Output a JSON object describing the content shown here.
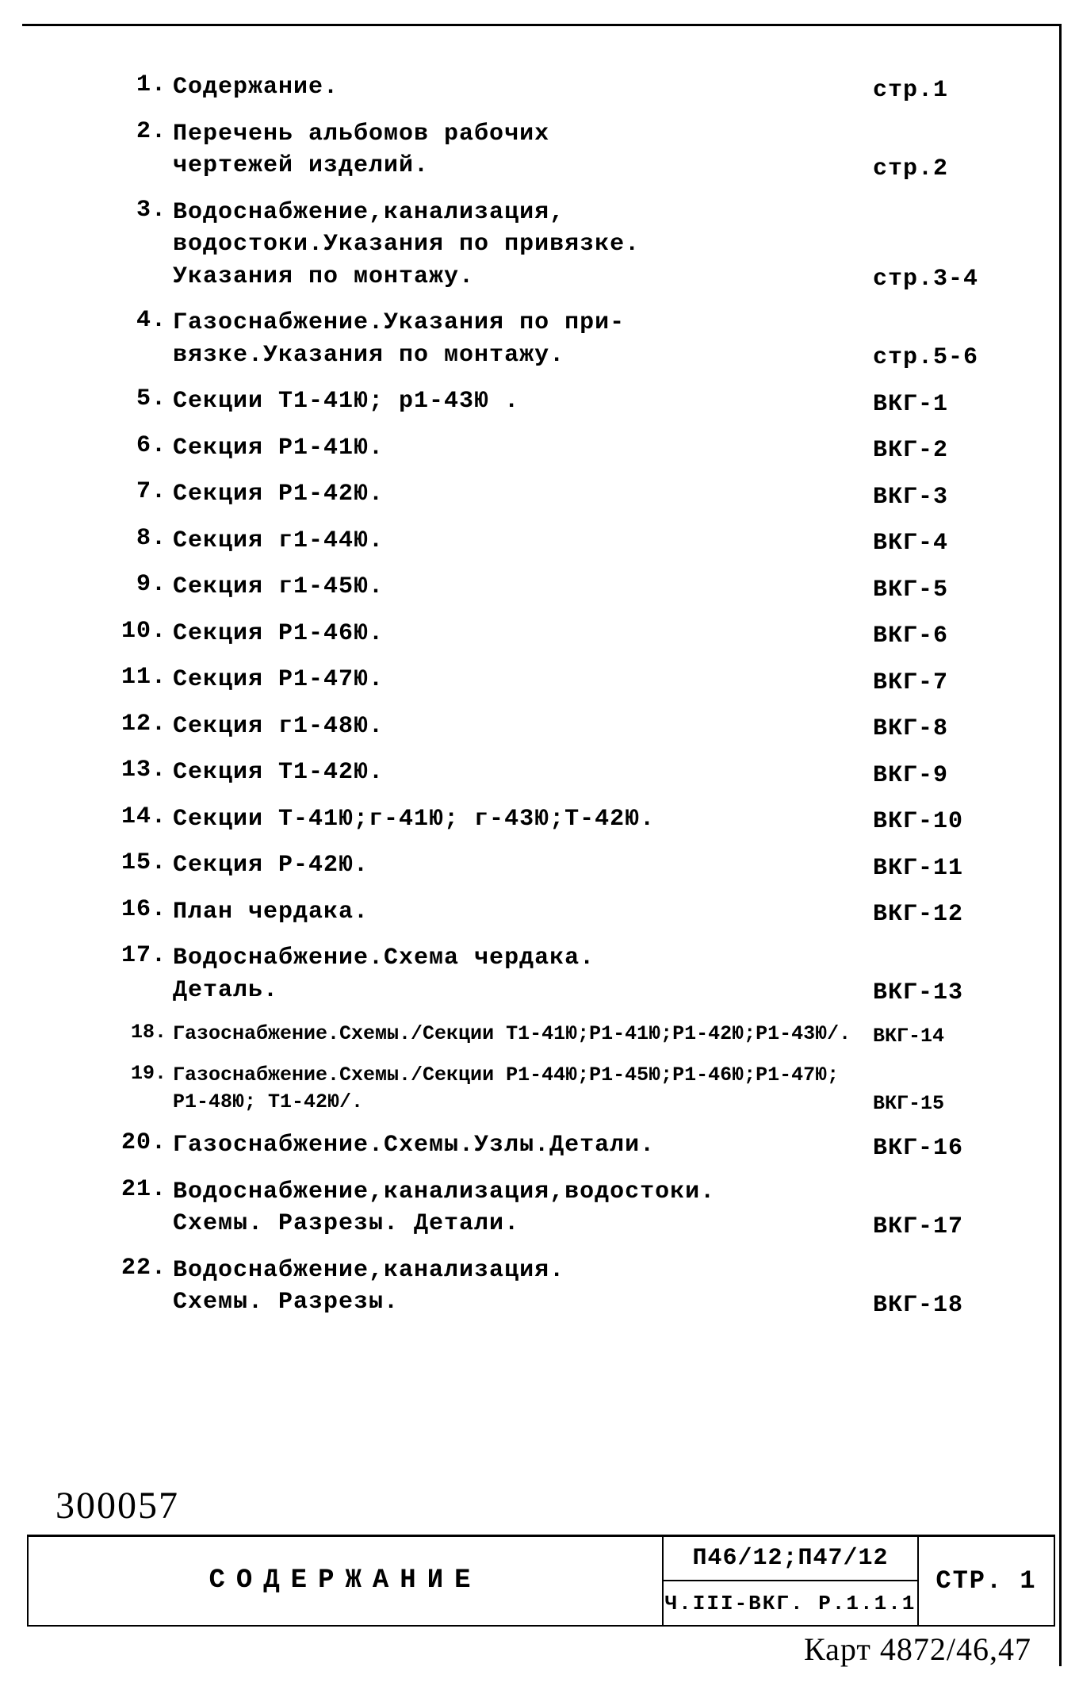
{
  "toc": [
    {
      "n": "1.",
      "t": "Содержание.",
      "p": "стр.1"
    },
    {
      "n": "2.",
      "t": "Перечень альбомов рабочих\nчертежей изделий.",
      "p": "стр.2"
    },
    {
      "n": "3.",
      "t": "Водоснабжение,канализация,\nводостоки.Указания по привязке.\nУказания по монтажу.",
      "p": "стр.3-4"
    },
    {
      "n": "4.",
      "t": "Газоснабжение.Указания по при-\nвязке.Указания по монтажу.",
      "p": "стр.5-6"
    },
    {
      "n": "5.",
      "t": "Секции Т1-41Ю; р1-43Ю .",
      "p": "ВКГ-1"
    },
    {
      "n": "6.",
      "t": "Секция Р1-41Ю.",
      "p": "ВКГ-2"
    },
    {
      "n": "7.",
      "t": "Секция Р1-42Ю.",
      "p": "ВКГ-3"
    },
    {
      "n": "8.",
      "t": "Секция г1-44Ю.",
      "p": "ВКГ-4"
    },
    {
      "n": "9.",
      "t": "Секция г1-45Ю.",
      "p": "ВКГ-5"
    },
    {
      "n": "10.",
      "t": "Секция Р1-46Ю.",
      "p": "ВКГ-6"
    },
    {
      "n": "11.",
      "t": "Секция Р1-47Ю.",
      "p": "ВКГ-7"
    },
    {
      "n": "12.",
      "t": "Секция г1-48Ю.",
      "p": "ВКГ-8"
    },
    {
      "n": "13.",
      "t": "Секция Т1-42Ю.",
      "p": "ВКГ-9"
    },
    {
      "n": "14.",
      "t": "Секции Т-41Ю;г-41Ю; г-43Ю;Т-42Ю.",
      "p": "ВКГ-10"
    },
    {
      "n": "15.",
      "t": "Секция Р-42Ю.",
      "p": "ВКГ-11"
    },
    {
      "n": "16.",
      "t": "План чердака.",
      "p": "ВКГ-12"
    },
    {
      "n": "17.",
      "t": "Водоснабжение.Схема чердака.\nДеталь.",
      "p": "ВКГ-13"
    },
    {
      "n": "18.",
      "t": "Газоснабжение.Схемы./Секции Т1-41Ю;Р1-41Ю;Р1-42Ю;Р1-43Ю/.",
      "p": "ВКГ-14",
      "small": true
    },
    {
      "n": "19.",
      "t": "Газоснабжение.Схемы./Секции Р1-44Ю;Р1-45Ю;Р1-46Ю;Р1-47Ю;\nР1-48Ю; Т1-42Ю/.",
      "p": "ВКГ-15",
      "small": true
    },
    {
      "n": "20.",
      "t": "Газоснабжение.Схемы.Узлы.Детали.",
      "p": "ВКГ-16"
    },
    {
      "n": "21.",
      "t": "Водоснабжение,канализация,водостоки.\nСхемы. Разрезы. Детали.",
      "p": "ВКГ-17"
    },
    {
      "n": "22.",
      "t": "Водоснабжение,канализация.\nСхемы. Разрезы.",
      "p": "ВКГ-18"
    }
  ],
  "inventory_no": "300057",
  "titleblock": {
    "title": "СОДЕРЖАНИЕ",
    "code_top": "П46/12;П47/12",
    "code_bot": "Ч.III-ВКГ. Р.1.1.1",
    "page": "СТР. 1"
  },
  "handnote": "Карт 4872/46,47"
}
